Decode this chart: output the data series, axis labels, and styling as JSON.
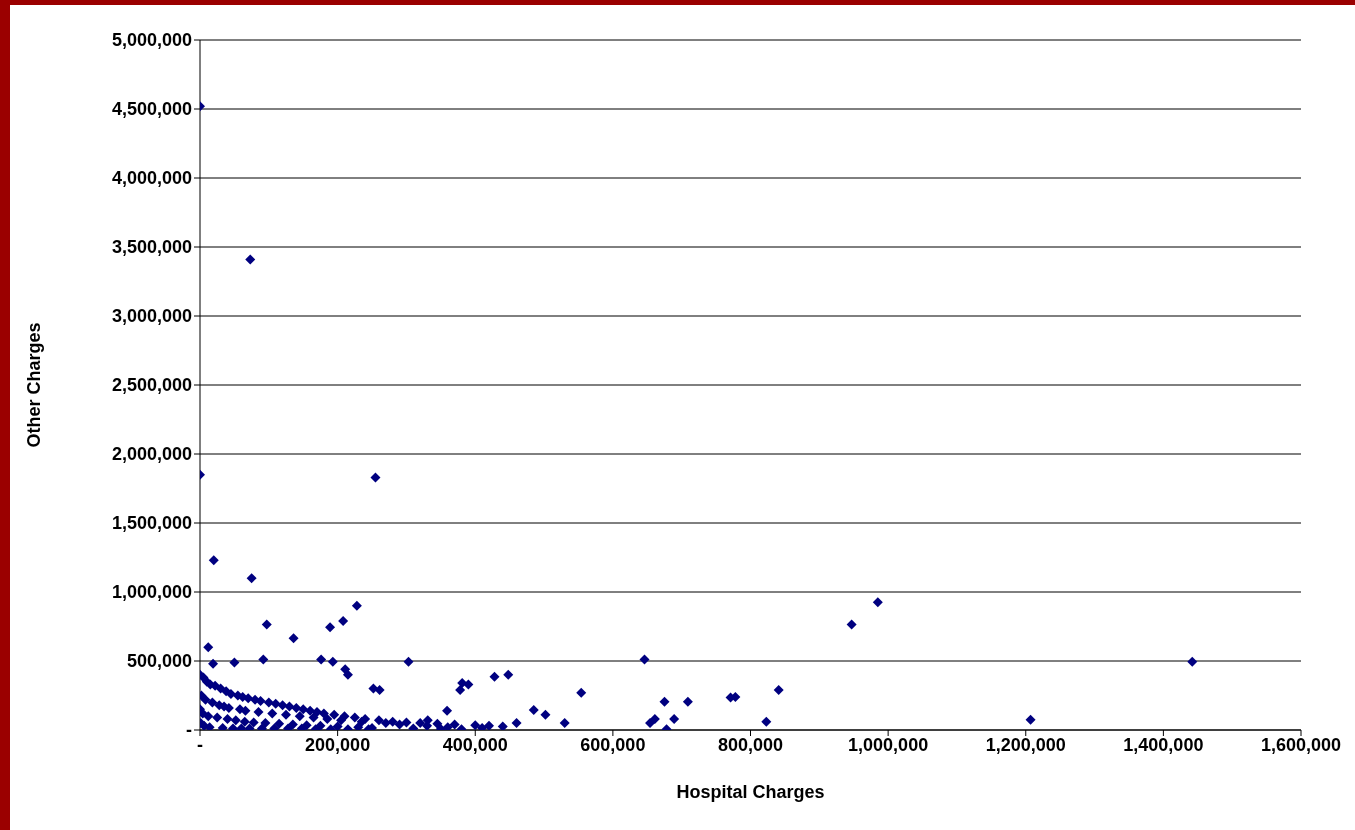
{
  "chart_data": {
    "type": "scatter",
    "xlabel": "Hospital Charges",
    "ylabel": "Other Charges",
    "x": [
      0,
      73000,
      0,
      255000,
      20000,
      75000,
      228000,
      97000,
      208000,
      189000,
      136000,
      12000,
      646000,
      947000,
      985000,
      1442000,
      1207000,
      303000,
      176000,
      193000,
      554000,
      841000,
      778000,
      771000,
      709000,
      675000,
      689000,
      661000,
      654000,
      678000,
      823000,
      448000,
      428000,
      390000,
      378000,
      381000,
      485000,
      502000,
      530000,
      460000,
      359000,
      331000,
      92000,
      50000,
      19000,
      252000,
      261000,
      215000,
      211000,
      0,
      5000,
      10000,
      15000,
      22000,
      30000,
      38000,
      45000,
      55000,
      62000,
      70000,
      80000,
      88000,
      100000,
      110000,
      120000,
      130000,
      140000,
      150000,
      160000,
      170000,
      180000,
      195000,
      210000,
      225000,
      240000,
      260000,
      280000,
      300000,
      320000,
      345000,
      370000,
      400000,
      420000,
      440000,
      2000,
      8000,
      18000,
      28000,
      35000,
      42000,
      58000,
      66000,
      85000,
      105000,
      125000,
      145000,
      165000,
      185000,
      205000,
      235000,
      270000,
      290000,
      330000,
      360000,
      410000,
      0,
      4000,
      12000,
      25000,
      40000,
      52000,
      65000,
      78000,
      95000,
      115000,
      135000,
      155000,
      175000,
      200000,
      230000,
      250000,
      310000,
      350000,
      380000,
      1000,
      6000,
      14000,
      33000,
      48000,
      60000,
      72000,
      90000,
      108000,
      128000,
      148000,
      168000,
      190000,
      215000,
      245000
    ],
    "values": [
      4520000,
      3410000,
      1850000,
      1830000,
      1230000,
      1100000,
      900000,
      765000,
      790000,
      745000,
      665000,
      600000,
      510000,
      765000,
      925000,
      495000,
      75000,
      495000,
      510000,
      495000,
      270000,
      290000,
      240000,
      235000,
      205000,
      205000,
      80000,
      80000,
      50000,
      5000,
      60000,
      400000,
      385000,
      330000,
      290000,
      340000,
      145000,
      110000,
      50000,
      50000,
      140000,
      70000,
      510000,
      490000,
      480000,
      300000,
      290000,
      400000,
      440000,
      400000,
      380000,
      350000,
      330000,
      320000,
      300000,
      280000,
      260000,
      250000,
      240000,
      230000,
      220000,
      210000,
      200000,
      190000,
      180000,
      170000,
      160000,
      150000,
      140000,
      130000,
      120000,
      110000,
      100000,
      90000,
      80000,
      70000,
      60000,
      55000,
      50000,
      45000,
      40000,
      35000,
      30000,
      25000,
      250000,
      220000,
      200000,
      180000,
      170000,
      160000,
      150000,
      140000,
      130000,
      120000,
      110000,
      100000,
      90000,
      80000,
      70000,
      60000,
      50000,
      40000,
      30000,
      20000,
      15000,
      150000,
      120000,
      100000,
      90000,
      80000,
      70000,
      60000,
      55000,
      50000,
      45000,
      40000,
      35000,
      30000,
      25000,
      20000,
      15000,
      10000,
      8000,
      5000,
      50000,
      30000,
      20000,
      15000,
      10000,
      10000,
      10000,
      10000,
      10000,
      10000,
      10000,
      5000,
      5000,
      5000,
      5000
    ],
    "color": "#000080",
    "marker": "diamond",
    "grid": "y",
    "xlim": [
      0,
      1600000
    ],
    "xticks": [
      {
        "value": 0,
        "label": "-"
      },
      {
        "value": 200000,
        "label": "200,000"
      },
      {
        "value": 400000,
        "label": "400,000"
      },
      {
        "value": 600000,
        "label": "600,000"
      },
      {
        "value": 800000,
        "label": "800,000"
      },
      {
        "value": 1000000,
        "label": "1,000,000"
      },
      {
        "value": 1200000,
        "label": "1,200,000"
      },
      {
        "value": 1400000,
        "label": "1,400,000"
      },
      {
        "value": 1600000,
        "label": "1,600,000"
      }
    ],
    "ylim": [
      0,
      5000000
    ],
    "yticks": [
      {
        "value": 0,
        "label": "-"
      },
      {
        "value": 500000,
        "label": "500,000"
      },
      {
        "value": 1000000,
        "label": "1,000,000"
      },
      {
        "value": 1500000,
        "label": "1,500,000"
      },
      {
        "value": 2000000,
        "label": "2,000,000"
      },
      {
        "value": 2500000,
        "label": "2,500,000"
      },
      {
        "value": 3000000,
        "label": "3,000,000"
      },
      {
        "value": 3500000,
        "label": "3,500,000"
      },
      {
        "value": 4000000,
        "label": "4,000,000"
      },
      {
        "value": 4500000,
        "label": "4,500,000"
      },
      {
        "value": 5000000,
        "label": "5,000,000"
      }
    ]
  }
}
